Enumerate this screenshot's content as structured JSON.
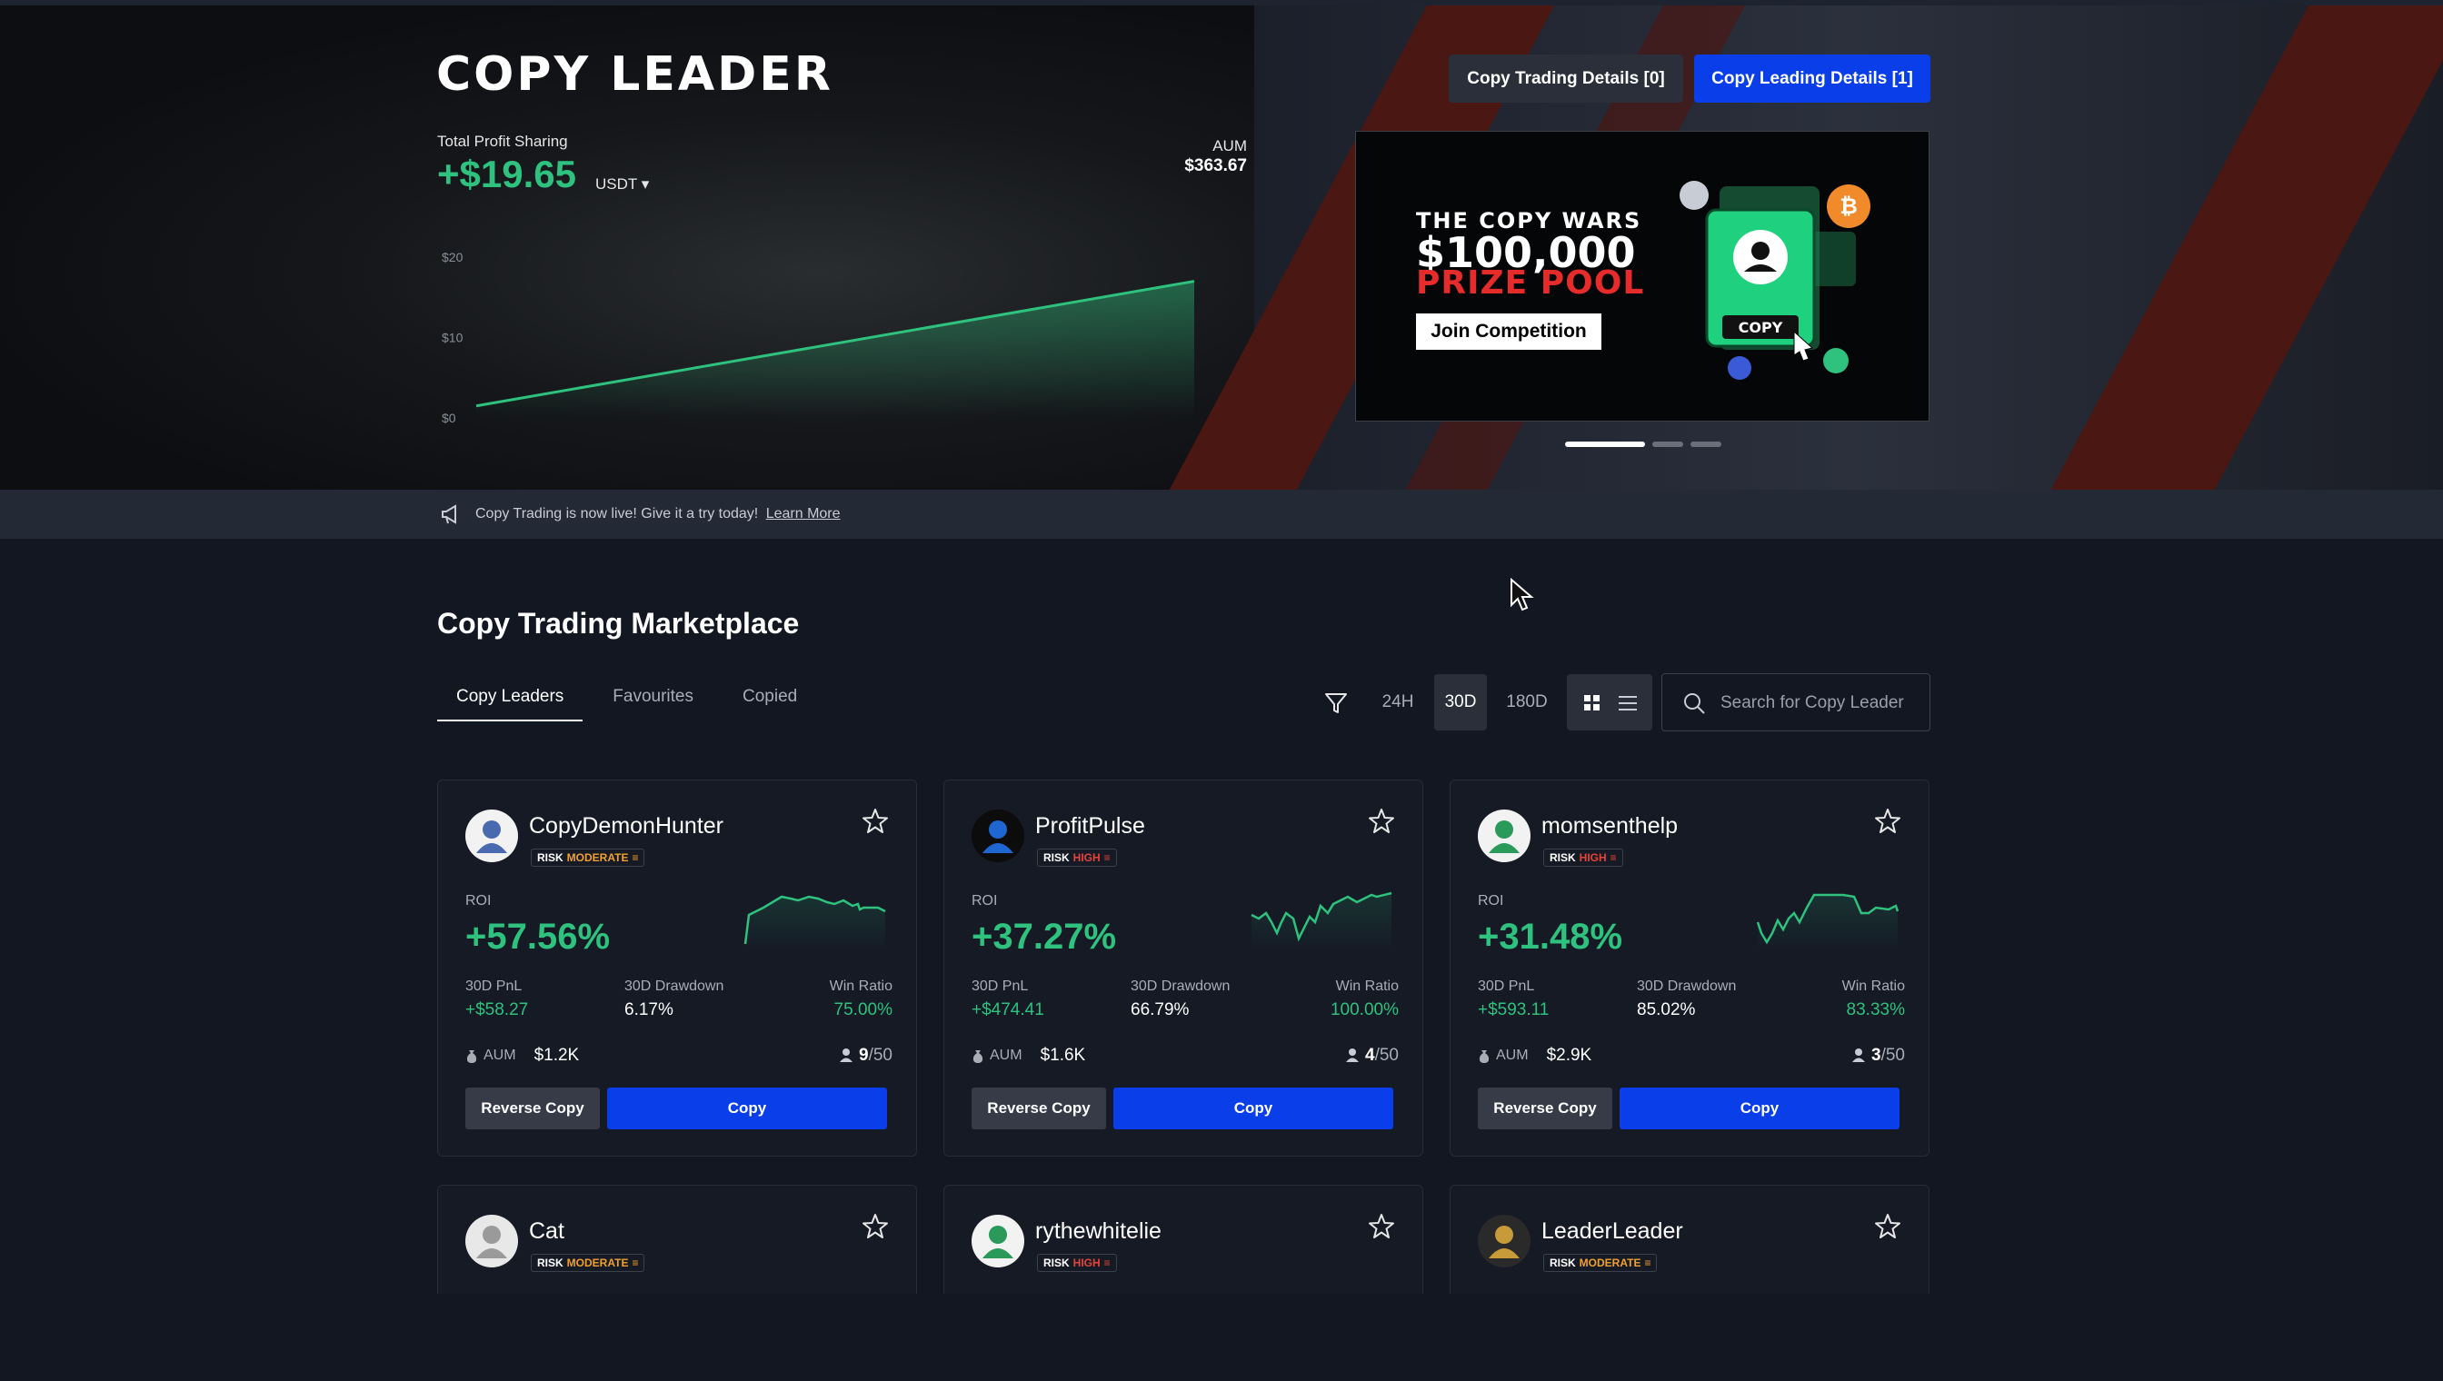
{
  "hero": {
    "title": "COPY LEADER",
    "total_profit_label": "Total Profit Sharing",
    "total_profit_value": "+$19.65",
    "currency": "USDT ▾",
    "aum_label": "AUM",
    "aum_value": "$363.67",
    "btn_copy_trading": "Copy Trading Details [0]",
    "btn_copy_leading": "Copy Leading Details [1]"
  },
  "chart_data": {
    "type": "area",
    "x": [
      0,
      1
    ],
    "values": [
      1.5,
      17
    ],
    "yticks": [
      "$20",
      "$10",
      "$0"
    ],
    "ylim": [
      0,
      20
    ],
    "color": "#2ec27e"
  },
  "banner": {
    "line1": "THE COPY WARS",
    "line2": "$100,000",
    "line3": "PRIZE POOL",
    "join": "Join Competition",
    "badge": "COPY",
    "slides": 3,
    "active_slide": 1
  },
  "announcement": {
    "text": "Copy Trading is now live! Give it a try today!",
    "link": "Learn More"
  },
  "marketplace": {
    "title": "Copy Trading Marketplace",
    "tabs": [
      "Copy Leaders",
      "Favourites",
      "Copied"
    ],
    "periods": [
      "24H",
      "30D",
      "180D"
    ],
    "active_period": "30D",
    "search_placeholder": "Search for Copy Leader"
  },
  "labels": {
    "risk": "RISK",
    "roi": "ROI",
    "pnl": "30D PnL",
    "drawdown": "30D Drawdown",
    "win_ratio": "Win Ratio",
    "aum": "AUM",
    "reverse_copy": "Reverse Copy",
    "copy": "Copy"
  },
  "leaders": [
    {
      "name": "CopyDemonHunter",
      "risk": "MODERATE",
      "roi": "+57.56%",
      "pnl": "+$58.27",
      "drawdown": "6.17%",
      "win_ratio": "75.00%",
      "aum": "$1.2K",
      "followers": "9",
      "max": "/50"
    },
    {
      "name": "ProfitPulse",
      "risk": "HIGH",
      "roi": "+37.27%",
      "pnl": "+$474.41",
      "drawdown": "66.79%",
      "win_ratio": "100.00%",
      "aum": "$1.6K",
      "followers": "4",
      "max": "/50"
    },
    {
      "name": "momsenthelp",
      "risk": "HIGH",
      "roi": "+31.48%",
      "pnl": "+$593.11",
      "drawdown": "85.02%",
      "win_ratio": "83.33%",
      "aum": "$2.9K",
      "followers": "3",
      "max": "/50"
    },
    {
      "name": "Cat",
      "risk": "MODERATE"
    },
    {
      "name": "rythewhitelie",
      "risk": "HIGH"
    },
    {
      "name": "LeaderLeader",
      "risk": "MODERATE"
    }
  ]
}
